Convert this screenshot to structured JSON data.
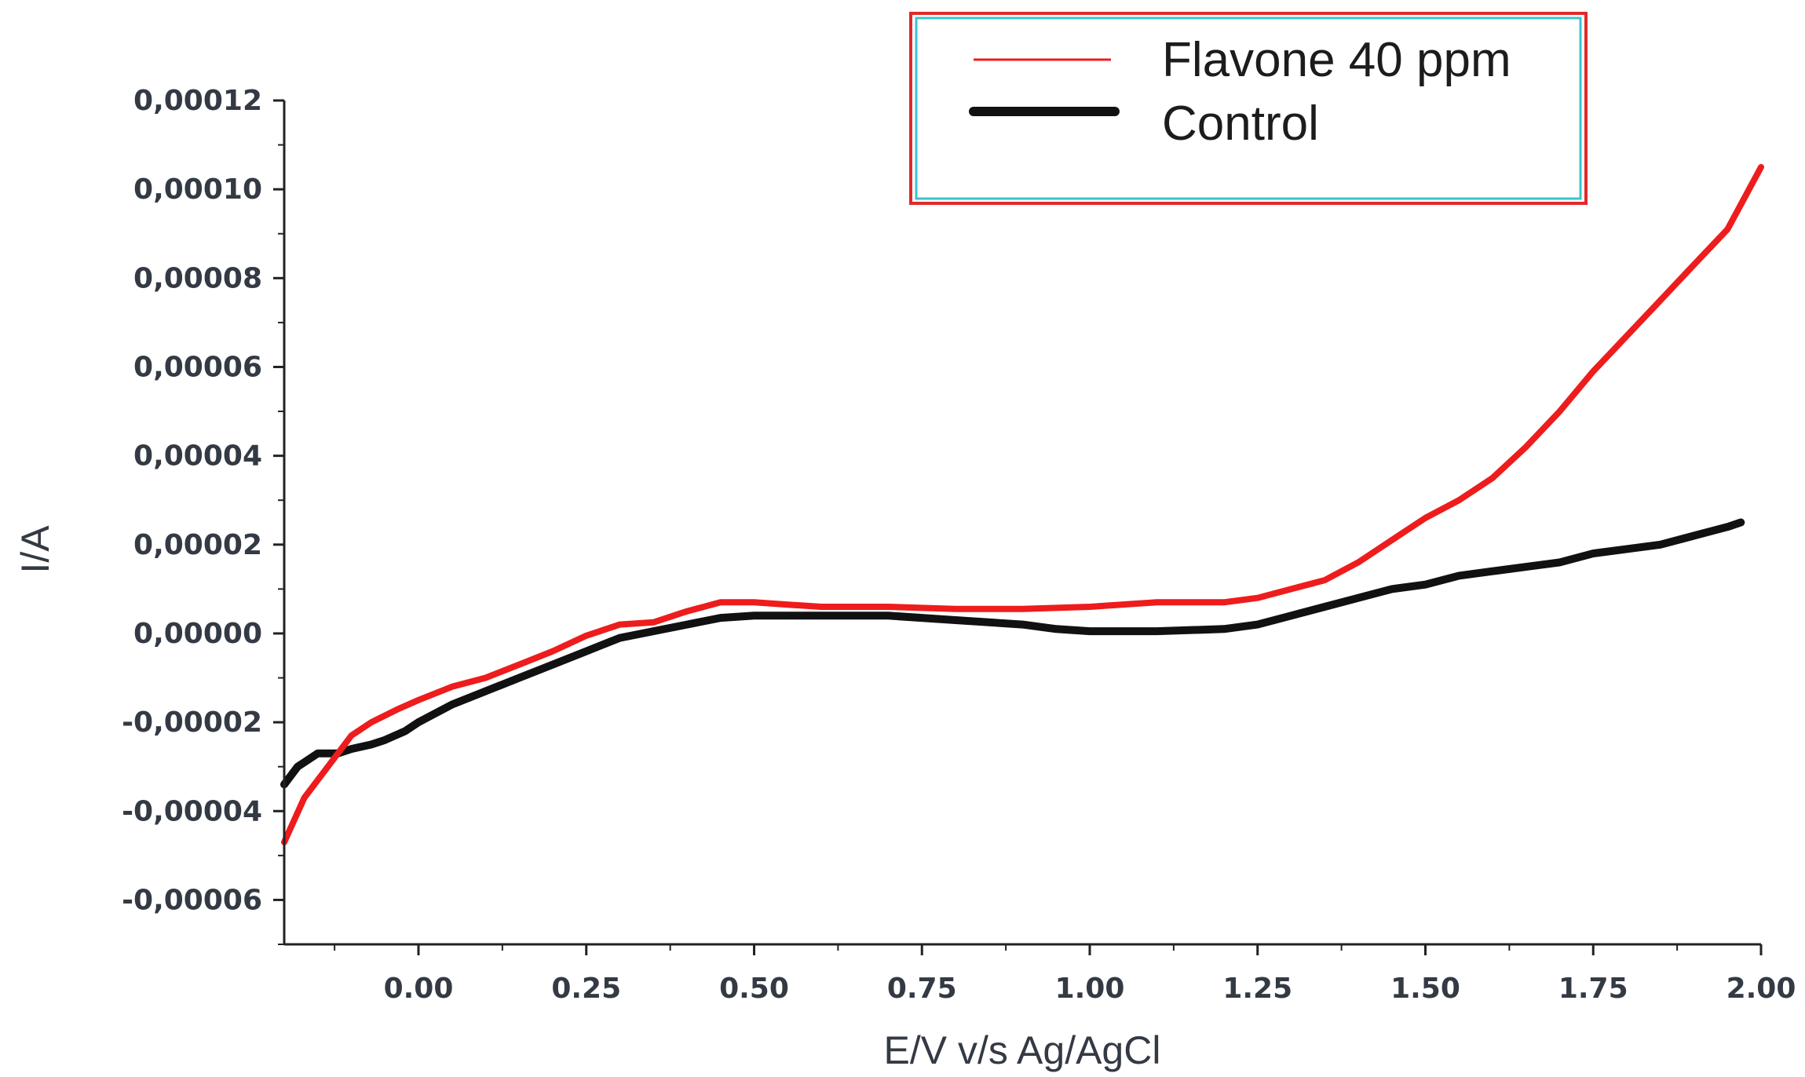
{
  "chart_data": {
    "type": "line",
    "title": "",
    "xlabel": "E/V v/s Ag/AgCl",
    "ylabel": "I/A",
    "xlim": [
      -0.2,
      2.0
    ],
    "ylim": [
      -7e-05,
      0.00012
    ],
    "x_ticks": [
      {
        "value": 0.0,
        "label": "0.00"
      },
      {
        "value": 0.25,
        "label": "0.25"
      },
      {
        "value": 0.5,
        "label": "0.50"
      },
      {
        "value": 0.75,
        "label": "0.75"
      },
      {
        "value": 1.0,
        "label": "1.00"
      },
      {
        "value": 1.25,
        "label": "1.25"
      },
      {
        "value": 1.5,
        "label": "1.50"
      },
      {
        "value": 1.75,
        "label": "1.75"
      },
      {
        "value": 2.0,
        "label": "2.00"
      }
    ],
    "y_ticks": [
      {
        "value": 0.00012,
        "label": "0,00012"
      },
      {
        "value": 0.0001,
        "label": "0,00010"
      },
      {
        "value": 8e-05,
        "label": "0,00008"
      },
      {
        "value": 6e-05,
        "label": "0,00006"
      },
      {
        "value": 4e-05,
        "label": "0,00004"
      },
      {
        "value": 2e-05,
        "label": "0,00002"
      },
      {
        "value": 0.0,
        "label": "0,00000"
      },
      {
        "value": -2e-05,
        "label": "-0,00002"
      },
      {
        "value": -4e-05,
        "label": "-0,00004"
      },
      {
        "value": -6e-05,
        "label": "-0,00006"
      }
    ],
    "grid": false,
    "legend_position": "top-right",
    "series": [
      {
        "name": "Flavone 40 ppm",
        "color": "#ee1c1c",
        "x": [
          -0.2,
          -0.17,
          -0.13,
          -0.1,
          -0.07,
          -0.03,
          0.0,
          0.05,
          0.1,
          0.15,
          0.2,
          0.25,
          0.3,
          0.35,
          0.4,
          0.45,
          0.5,
          0.55,
          0.6,
          0.7,
          0.8,
          0.9,
          1.0,
          1.1,
          1.2,
          1.25,
          1.3,
          1.35,
          1.4,
          1.45,
          1.5,
          1.55,
          1.6,
          1.65,
          1.7,
          1.75,
          1.8,
          1.85,
          1.9,
          1.95,
          2.0
        ],
        "y": [
          -4.7e-05,
          -3.7e-05,
          -2.9e-05,
          -2.3e-05,
          -2e-05,
          -1.7e-05,
          -1.5e-05,
          -1.2e-05,
          -1e-05,
          -7e-06,
          -4e-06,
          -5e-07,
          2e-06,
          2.5e-06,
          5e-06,
          7e-06,
          7e-06,
          6.5e-06,
          6e-06,
          6e-06,
          5.5e-06,
          5.5e-06,
          6e-06,
          7e-06,
          7e-06,
          8e-06,
          1e-05,
          1.2e-05,
          1.6e-05,
          2.1e-05,
          2.6e-05,
          3e-05,
          3.5e-05,
          4.2e-05,
          5e-05,
          5.9e-05,
          6.7e-05,
          7.5e-05,
          8.3e-05,
          9.1e-05,
          0.000105
        ]
      },
      {
        "name": "Control",
        "color": "#111111",
        "x": [
          -0.2,
          -0.18,
          -0.15,
          -0.12,
          -0.1,
          -0.07,
          -0.05,
          -0.02,
          0.0,
          0.05,
          0.1,
          0.15,
          0.2,
          0.25,
          0.3,
          0.35,
          0.4,
          0.45,
          0.5,
          0.6,
          0.7,
          0.8,
          0.9,
          0.95,
          1.0,
          1.1,
          1.2,
          1.25,
          1.3,
          1.35,
          1.4,
          1.45,
          1.5,
          1.55,
          1.6,
          1.65,
          1.7,
          1.75,
          1.8,
          1.85,
          1.9,
          1.95,
          1.97
        ],
        "y": [
          -3.4e-05,
          -3e-05,
          -2.7e-05,
          -2.7e-05,
          -2.6e-05,
          -2.5e-05,
          -2.4e-05,
          -2.2e-05,
          -2e-05,
          -1.6e-05,
          -1.3e-05,
          -1e-05,
          -7e-06,
          -4e-06,
          -1e-06,
          5e-07,
          2e-06,
          3.5e-06,
          4e-06,
          4e-06,
          4e-06,
          3e-06,
          2e-06,
          1e-06,
          5e-07,
          5e-07,
          1e-06,
          2e-06,
          4e-06,
          6e-06,
          8e-06,
          1e-05,
          1.1e-05,
          1.3e-05,
          1.4e-05,
          1.5e-05,
          1.6e-05,
          1.8e-05,
          1.9e-05,
          2e-05,
          2.2e-05,
          2.4e-05,
          2.5e-05
        ]
      }
    ]
  }
}
